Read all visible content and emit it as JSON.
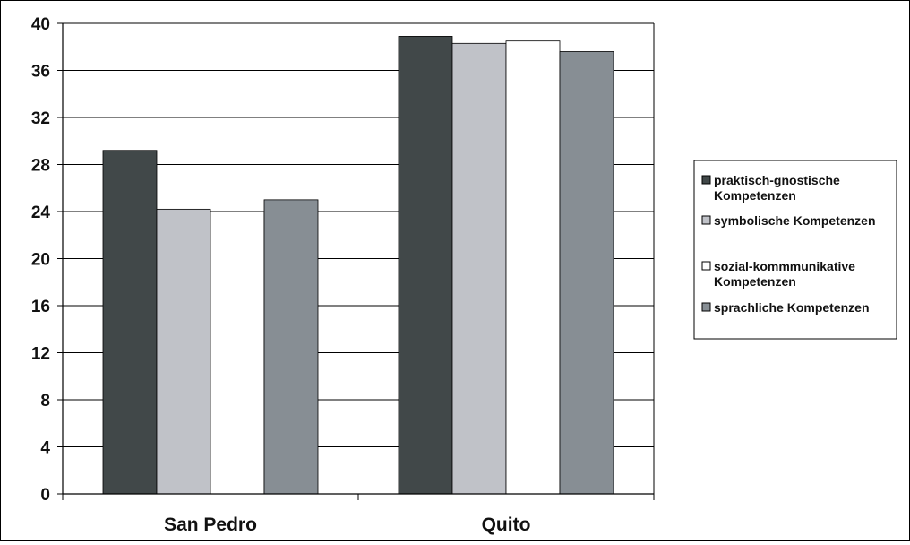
{
  "chart_data": {
    "type": "bar",
    "title": "",
    "xlabel": "",
    "ylabel": "",
    "categories": [
      "San Pedro",
      "Quito"
    ],
    "ylim": [
      0,
      40
    ],
    "yticks": [
      0,
      4,
      8,
      12,
      16,
      20,
      24,
      28,
      32,
      36,
      40
    ],
    "grid": true,
    "legend_position": "right",
    "series": [
      {
        "name": "praktisch-gnostische Kompetenzen",
        "values": [
          29.2,
          38.9
        ],
        "color": "#414849"
      },
      {
        "name": "symbolische Kompetenzen",
        "values": [
          24.2,
          38.3
        ],
        "color": "#c0c2c8"
      },
      {
        "name": "sozial-kommmunikative Kompetenzen",
        "values": [
          24.0,
          38.5
        ],
        "color": "#ffffff"
      },
      {
        "name": "sprachliche Kompetenzen",
        "values": [
          25.0,
          37.6
        ],
        "color": "#878e94"
      }
    ]
  },
  "legend": {
    "items": [
      {
        "lines": [
          "praktisch-gnostische",
          "Kompetenzen"
        ]
      },
      {
        "lines": [
          "symbolische Kompetenzen"
        ]
      },
      {
        "lines": [
          "sozial-kommmunikative",
          "Kompetenzen"
        ]
      },
      {
        "lines": [
          "sprachliche Kompetenzen"
        ]
      }
    ]
  }
}
